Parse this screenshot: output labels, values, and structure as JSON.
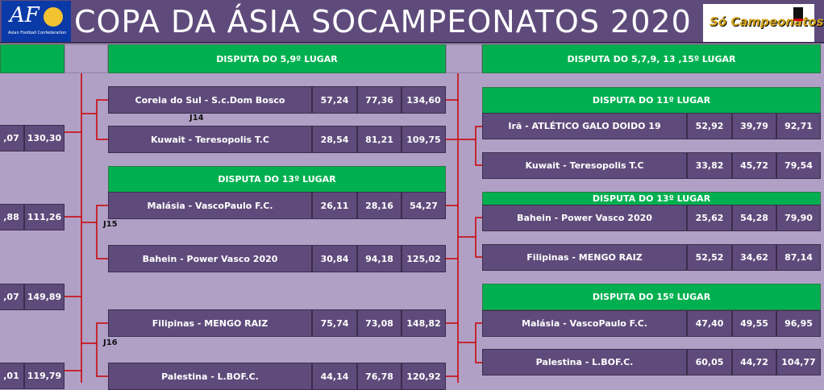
{
  "header": {
    "title": "COPA DA ÁSIA SOCAMPEONATOS  2020",
    "left_logo": {
      "text": "AFC",
      "subtitle": "Asian Football Confederation"
    },
    "right_logo": {
      "text": "Só Campeonatos"
    }
  },
  "colors": {
    "header_bg": "#5f4b7b",
    "page_bg": "#b0a0c6",
    "section_green": "#00b050",
    "bracket_line": "#cc0000",
    "afc_blue": "#0a3aa8"
  },
  "left_column": {
    "rows": [
      {
        "score2": ",07",
        "total": "130,30"
      },
      {
        "score2": ",88",
        "total": "111,26"
      },
      {
        "score2": ",07",
        "total": "149,89"
      },
      {
        "score2": ",01",
        "total": "119,79"
      }
    ]
  },
  "middle_column": {
    "header": "DISPUTA DO 5,9º LUGAR",
    "sub_header": "DISPUTA DO 13º LUGAR",
    "games": [
      {
        "label": "J14",
        "teams": [
          {
            "name": "Coreia do Sul - S.c.Dom Bosco",
            "s1": "57,24",
            "s2": "77,36",
            "total": "134,60"
          },
          {
            "name": "Kuwait - Teresopolis T.C",
            "s1": "28,54",
            "s2": "81,21",
            "total": "109,75"
          }
        ]
      },
      {
        "label": "J15",
        "teams": [
          {
            "name": "Malásia - VascoPaulo F.C.",
            "s1": "26,11",
            "s2": "28,16",
            "total": "54,27"
          },
          {
            "name": "Bahein -  Power Vasco 2020",
            "s1": "30,84",
            "s2": "94,18",
            "total": "125,02"
          }
        ]
      },
      {
        "label": "J16",
        "teams": [
          {
            "name": "Filipinas - MENGO RAIZ",
            "s1": "75,74",
            "s2": "73,08",
            "total": "148,82"
          },
          {
            "name": "Palestina - L.BOF.C.",
            "s1": "44,14",
            "s2": "76,78",
            "total": "120,92"
          }
        ]
      }
    ]
  },
  "right_column": {
    "header": "DISPUTA DO 5,7,9, 13 ,15º LUGAR",
    "sections": [
      {
        "title": "DISPUTA DO 11º LUGAR",
        "teams": [
          {
            "name": "Irã -  ATLÉTICO GALO DOIDO 19",
            "s1": "52,92",
            "s2": "39,79",
            "total": "92,71"
          },
          {
            "name": "Kuwait - Teresopolis T.C",
            "s1": "33,82",
            "s2": "45,72",
            "total": "79,54"
          }
        ]
      },
      {
        "title": "DISPUTA DO 13º LUGAR",
        "teams": [
          {
            "name": "Bahein -  Power Vasco 2020",
            "s1": "25,62",
            "s2": "54,28",
            "total": "79,90"
          },
          {
            "name": "Filipinas - MENGO RAIZ",
            "s1": "52,52",
            "s2": "34,62",
            "total": "87,14"
          }
        ]
      },
      {
        "title": "DISPUTA DO 15º LUGAR",
        "teams": [
          {
            "name": "Malásia - VascoPaulo F.C.",
            "s1": "47,40",
            "s2": "49,55",
            "total": "96,95"
          },
          {
            "name": "Palestina - L.BOF.C.",
            "s1": "60,05",
            "s2": "44,72",
            "total": "104,77"
          }
        ]
      }
    ]
  }
}
